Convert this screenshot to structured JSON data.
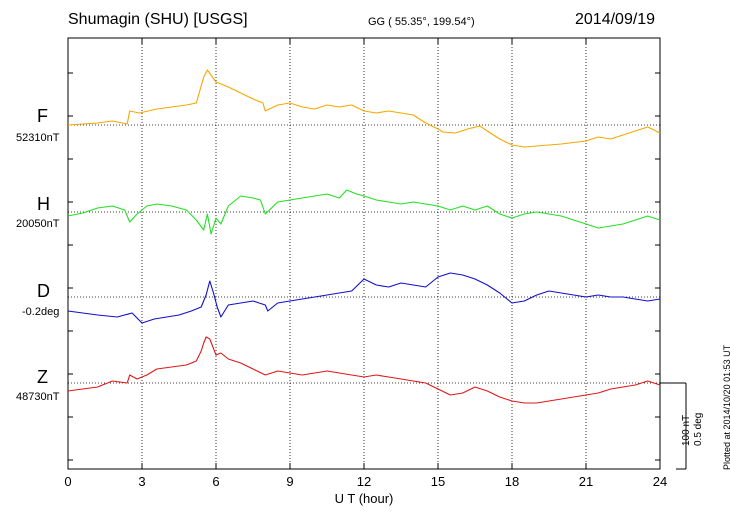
{
  "chart_data": {
    "type": "line",
    "title": {
      "station": "Shumagin (SHU)  [USGS]",
      "coords": "GG ( 55.35°, 199.54°)",
      "date": "2014/09/19"
    },
    "xlabel": "U T (hour)",
    "xlim": [
      0,
      24
    ],
    "xticks": [
      0,
      3,
      6,
      9,
      12,
      15,
      18,
      21,
      24
    ],
    "scale": {
      "nt": "100 nT",
      "deg": "0.5 deg"
    },
    "plotted_note": "Plotted at 2014/10/20 01:53 UT",
    "series": [
      {
        "key": "F",
        "name": "F",
        "color": "#f5a800",
        "baseline_label": "52310nT",
        "x": [
          0,
          0.6,
          1.2,
          1.8,
          2.4,
          2.5,
          2.9,
          3.6,
          4.2,
          4.8,
          5.2,
          5.5,
          5.65,
          6.0,
          6.5,
          7.0,
          7.5,
          7.9,
          8.0,
          8.5,
          9.0,
          9.5,
          10.0,
          10.5,
          11.0,
          11.5,
          12.0,
          12.5,
          13.0,
          13.5,
          14.0,
          14.5,
          15.0,
          15.2,
          15.7,
          16.2,
          16.7,
          17.0,
          17.5,
          18.0,
          18.5,
          19.0,
          20.0,
          21.0,
          21.5,
          22.0,
          22.5,
          23.0,
          23.5,
          24.0
        ],
        "values": [
          0,
          1,
          2,
          4,
          1,
          14,
          12,
          16,
          18,
          20,
          22,
          48,
          55,
          43,
          38,
          32,
          26,
          22,
          14,
          20,
          22,
          18,
          16,
          20,
          18,
          20,
          14,
          12,
          14,
          12,
          10,
          2,
          -4,
          -7,
          -8,
          -4,
          -1,
          -6,
          -14,
          -20,
          -22,
          -21,
          -19,
          -16,
          -12,
          -14,
          -10,
          -6,
          -2,
          -8
        ]
      },
      {
        "key": "H",
        "name": "H",
        "color": "#22e022",
        "baseline_label": "20050nT",
        "x": [
          0,
          0.6,
          1.2,
          1.8,
          2.3,
          2.5,
          2.8,
          3.2,
          3.6,
          4.2,
          4.8,
          5.2,
          5.5,
          5.65,
          5.8,
          6.0,
          6.2,
          6.5,
          7.0,
          7.5,
          7.8,
          8.0,
          8.5,
          9.0,
          9.5,
          10.0,
          10.5,
          11.0,
          11.3,
          11.7,
          12.0,
          12.5,
          13.0,
          13.5,
          14.0,
          14.5,
          15.0,
          15.5,
          16.0,
          16.5,
          17.0,
          17.5,
          18.0,
          18.5,
          19.0,
          20.0,
          20.5,
          21.0,
          21.5,
          22.0,
          22.5,
          23.0,
          23.5,
          24.0
        ],
        "values": [
          -4,
          -1,
          4,
          6,
          2,
          -10,
          -2,
          6,
          8,
          6,
          2,
          -8,
          -18,
          -2,
          -22,
          -6,
          -12,
          6,
          16,
          14,
          12,
          -2,
          10,
          12,
          14,
          16,
          18,
          14,
          22,
          18,
          16,
          12,
          10,
          8,
          10,
          8,
          6,
          2,
          6,
          2,
          6,
          -2,
          -6,
          -2,
          0,
          -4,
          -8,
          -12,
          -16,
          -14,
          -12,
          -8,
          -4,
          -8
        ]
      },
      {
        "key": "D",
        "name": "D",
        "color": "#1010cc",
        "baseline_label": "-0.2deg",
        "x": [
          0,
          0.6,
          1.2,
          2.0,
          2.6,
          3.0,
          3.5,
          4.0,
          4.5,
          5.0,
          5.4,
          5.6,
          5.75,
          5.9,
          6.05,
          6.2,
          6.5,
          7.0,
          7.5,
          8.0,
          8.1,
          8.5,
          9.0,
          9.5,
          10.0,
          10.5,
          11.0,
          11.5,
          12.0,
          12.5,
          13.0,
          13.5,
          14.0,
          14.5,
          15.0,
          15.5,
          16.0,
          16.5,
          17.0,
          17.5,
          18.0,
          18.5,
          19.0,
          19.5,
          20.0,
          20.5,
          21.0,
          21.5,
          22.0,
          22.5,
          23.0,
          23.5,
          24.0
        ],
        "values": [
          -14,
          -16,
          -18,
          -20,
          -16,
          -26,
          -22,
          -20,
          -18,
          -14,
          -10,
          2,
          16,
          4,
          -10,
          -20,
          -8,
          -6,
          -4,
          -8,
          -14,
          -6,
          -4,
          -2,
          0,
          2,
          4,
          6,
          18,
          12,
          10,
          14,
          12,
          10,
          20,
          24,
          22,
          18,
          12,
          4,
          -6,
          -4,
          2,
          6,
          4,
          2,
          0,
          2,
          0,
          0,
          -2,
          -4,
          -2
        ]
      },
      {
        "key": "Z",
        "name": "Z",
        "color": "#e01818",
        "baseline_label": "48730nT",
        "x": [
          0,
          0.6,
          1.2,
          1.8,
          2.4,
          2.5,
          2.8,
          3.2,
          3.6,
          4.2,
          4.8,
          5.2,
          5.4,
          5.5,
          5.6,
          5.75,
          6.0,
          6.2,
          6.5,
          7.0,
          7.5,
          8.0,
          8.5,
          9.0,
          9.5,
          10.0,
          10.5,
          11.0,
          11.5,
          12.0,
          12.5,
          13.0,
          13.5,
          14.0,
          14.5,
          15.0,
          15.5,
          16.0,
          16.5,
          17.0,
          17.5,
          18.0,
          18.5,
          19.0,
          19.5,
          20.0,
          20.5,
          21.0,
          21.5,
          22.0,
          22.5,
          23.0,
          23.5,
          24.0
        ],
        "values": [
          -8,
          -6,
          -4,
          2,
          0,
          8,
          4,
          8,
          14,
          16,
          18,
          22,
          32,
          40,
          46,
          44,
          28,
          30,
          24,
          20,
          14,
          8,
          12,
          10,
          8,
          10,
          12,
          10,
          8,
          6,
          8,
          6,
          4,
          2,
          0,
          -6,
          -12,
          -10,
          -4,
          -8,
          -14,
          -18,
          -20,
          -20,
          -18,
          -16,
          -14,
          -12,
          -10,
          -6,
          -4,
          -2,
          2,
          -2
        ]
      }
    ]
  }
}
